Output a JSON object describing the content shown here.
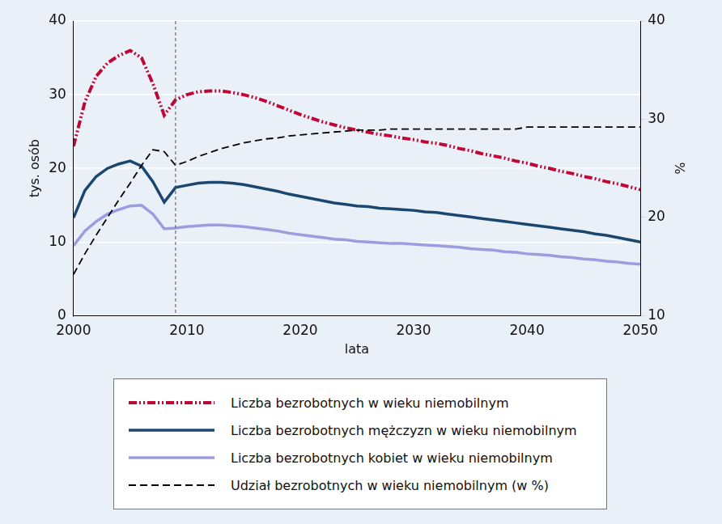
{
  "chart_data": {
    "type": "line",
    "x_label": "lata",
    "y_label": "tys. osób",
    "y2_label": "%",
    "x": [
      2000,
      2001,
      2002,
      2003,
      2004,
      2005,
      2006,
      2007,
      2008,
      2009,
      2010,
      2011,
      2012,
      2013,
      2014,
      2015,
      2016,
      2017,
      2018,
      2019,
      2020,
      2021,
      2022,
      2023,
      2024,
      2025,
      2026,
      2027,
      2028,
      2029,
      2030,
      2031,
      2032,
      2033,
      2034,
      2035,
      2036,
      2037,
      2038,
      2039,
      2040,
      2041,
      2042,
      2043,
      2044,
      2045,
      2046,
      2047,
      2048,
      2049,
      2050
    ],
    "xlim": [
      2000,
      2050
    ],
    "xticks": [
      2000,
      2010,
      2020,
      2030,
      2040,
      2050
    ],
    "ylim": [
      0,
      40
    ],
    "yticks": [
      0,
      10,
      20,
      30,
      40
    ],
    "y2lim": [
      10,
      40
    ],
    "y2ticks": [
      10,
      20,
      30,
      40
    ],
    "grid": true,
    "legend": "bottom",
    "reference_line_x": 2009,
    "series": [
      {
        "name": "Liczba bezrobotnych w wieku niemobilnym",
        "color": "#c10534",
        "line_style": "dash_dot_dot",
        "values": [
          23,
          29,
          32.5,
          34.3,
          35.3,
          36,
          35,
          31.5,
          27.2,
          29.3,
          30,
          30.4,
          30.5,
          30.5,
          30.3,
          30,
          29.6,
          29.1,
          28.5,
          27.9,
          27.3,
          26.8,
          26.3,
          25.9,
          25.5,
          25.2,
          24.9,
          24.6,
          24.4,
          24.1,
          23.9,
          23.6,
          23.4,
          23.1,
          22.7,
          22.4,
          22,
          21.7,
          21.4,
          21,
          20.7,
          20.3,
          20,
          19.6,
          19.3,
          18.9,
          18.6,
          18.2,
          17.9,
          17.5,
          17.1
        ]
      },
      {
        "name": "Liczba bezrobotnych mężczyzn w wieku niemobilnym",
        "color": "#1a476f",
        "line_style": "solid",
        "values": [
          13.3,
          17,
          18.9,
          20,
          20.6,
          21,
          20.3,
          18.2,
          15.4,
          17.4,
          17.7,
          18,
          18.1,
          18.1,
          18,
          17.8,
          17.5,
          17.2,
          16.9,
          16.5,
          16.2,
          15.9,
          15.6,
          15.3,
          15.1,
          14.9,
          14.8,
          14.6,
          14.5,
          14.4,
          14.3,
          14.1,
          14,
          13.8,
          13.6,
          13.4,
          13.2,
          13,
          12.8,
          12.6,
          12.4,
          12.2,
          12,
          11.8,
          11.6,
          11.4,
          11.1,
          10.9,
          10.6,
          10.3,
          10
        ]
      },
      {
        "name": "Liczba bezrobotnych kobiet w wieku niemobilnym",
        "color": "#9c9ce0",
        "line_style": "solid",
        "values": [
          9.5,
          11.5,
          12.8,
          13.8,
          14.4,
          14.9,
          15,
          13.8,
          11.8,
          11.9,
          12.1,
          12.2,
          12.3,
          12.3,
          12.2,
          12.1,
          11.9,
          11.7,
          11.5,
          11.2,
          11,
          10.8,
          10.6,
          10.4,
          10.3,
          10.1,
          10,
          9.9,
          9.8,
          9.8,
          9.7,
          9.6,
          9.5,
          9.4,
          9.3,
          9.1,
          9,
          8.9,
          8.7,
          8.6,
          8.4,
          8.3,
          8.2,
          8,
          7.9,
          7.7,
          7.6,
          7.4,
          7.3,
          7.1,
          7
        ]
      },
      {
        "name": "Udział bezrobotnych w wieku niemobilnym (w %)",
        "color": "#000000",
        "line_style": "dashed",
        "axis": "y2",
        "values": [
          14.2,
          16.3,
          18.2,
          20,
          21.8,
          23.5,
          25.3,
          26.9,
          26.7,
          25.3,
          25.7,
          26.2,
          26.6,
          27,
          27.3,
          27.6,
          27.8,
          28,
          28.1,
          28.3,
          28.4,
          28.5,
          28.6,
          28.7,
          28.8,
          28.9,
          28.9,
          28.9,
          29,
          29,
          29,
          29,
          29,
          29,
          29,
          29,
          29,
          29,
          29,
          29,
          29.2,
          29.2,
          29.2,
          29.2,
          29.2,
          29.2,
          29.2,
          29.2,
          29.2,
          29.2,
          29.2
        ]
      }
    ]
  }
}
